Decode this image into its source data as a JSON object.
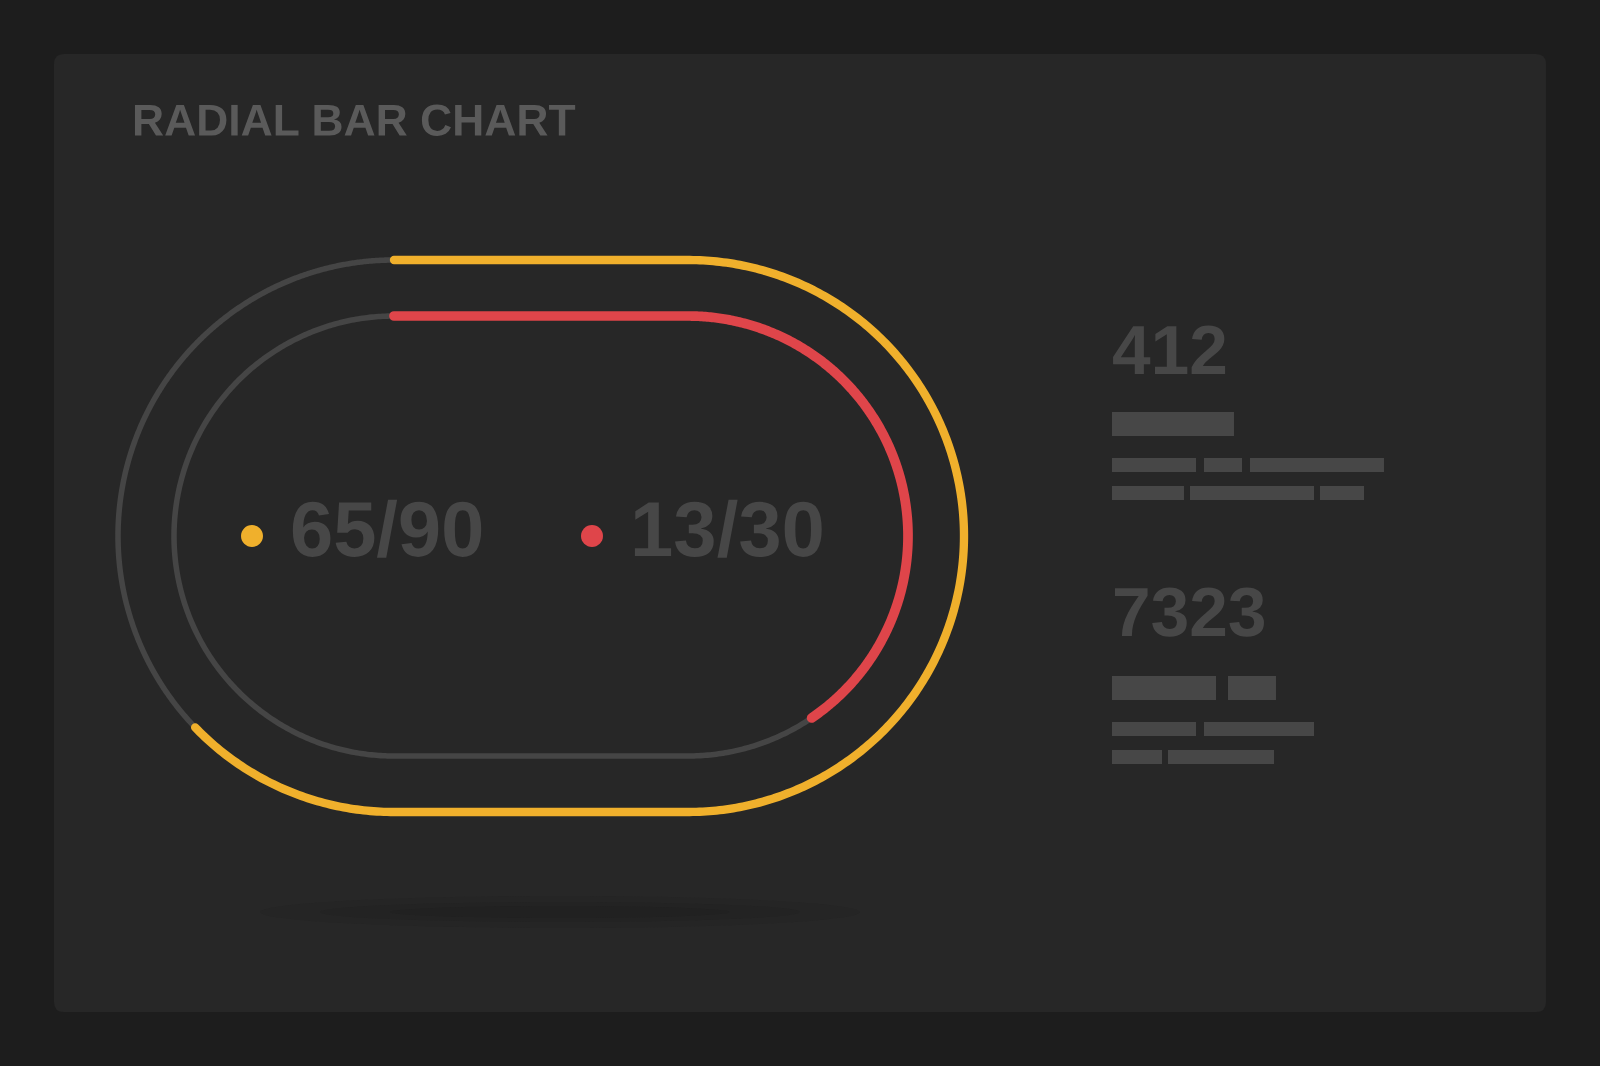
{
  "chart_data": {
    "type": "other",
    "title": "RADIAL BAR CHART",
    "values": [
      65,
      90,
      13,
      30
    ],
    "value_labels": [
      "65",
      "/90",
      "13",
      "/30"
    ],
    "colors": [
      "#f0b02c",
      "#454545",
      "#df454a",
      "#454545"
    ],
    "annotations": [
      "412",
      "7323"
    ]
  }
}
